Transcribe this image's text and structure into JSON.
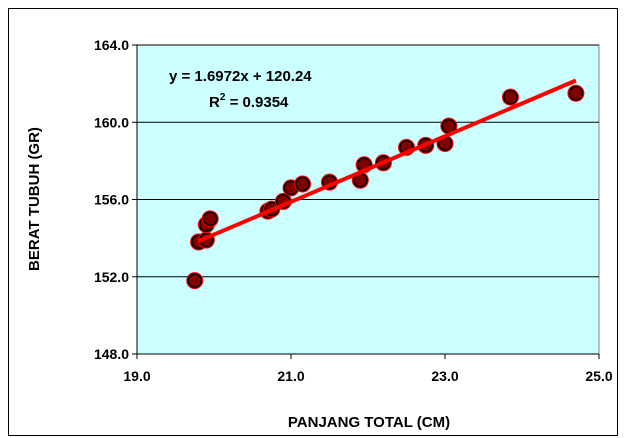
{
  "chart_data": {
    "type": "scatter",
    "xlabel": "PANJANG TOTAL (CM)",
    "ylabel": "BERAT TUBUH (GR)",
    "xlim": [
      19.0,
      25.0
    ],
    "ylim": [
      148.0,
      164.0
    ],
    "x_ticks": [
      "19.0",
      "21.0",
      "23.0",
      "25.0"
    ],
    "y_ticks": [
      "148.0",
      "152.0",
      "156.0",
      "160.0",
      "164.0"
    ],
    "grid": "horizontal",
    "plot_background": "#ccffff",
    "marker_fill": "#800000",
    "marker_edge": "#ff0000",
    "trendline_color": "#ff0000",
    "trendline": {
      "slope": 1.6972,
      "intercept": 120.24,
      "x_range": [
        19.8,
        24.7
      ]
    },
    "equation_line1": "y = 1.6972x + 120.24",
    "equation_r2_prefix": "R",
    "equation_r2_sup": "2",
    "equation_r2_suffix": " = 0.9354",
    "points": [
      {
        "x": 19.75,
        "y": 151.8
      },
      {
        "x": 19.8,
        "y": 153.8
      },
      {
        "x": 19.9,
        "y": 153.9
      },
      {
        "x": 19.9,
        "y": 154.7
      },
      {
        "x": 19.95,
        "y": 155.0
      },
      {
        "x": 20.7,
        "y": 155.4
      },
      {
        "x": 20.75,
        "y": 155.5
      },
      {
        "x": 20.9,
        "y": 155.9
      },
      {
        "x": 21.0,
        "y": 156.6
      },
      {
        "x": 21.15,
        "y": 156.8
      },
      {
        "x": 21.5,
        "y": 156.9
      },
      {
        "x": 21.9,
        "y": 157.0
      },
      {
        "x": 21.95,
        "y": 157.8
      },
      {
        "x": 22.2,
        "y": 157.9
      },
      {
        "x": 22.5,
        "y": 158.7
      },
      {
        "x": 22.75,
        "y": 158.8
      },
      {
        "x": 23.0,
        "y": 158.9
      },
      {
        "x": 23.05,
        "y": 159.8
      },
      {
        "x": 23.85,
        "y": 161.3
      },
      {
        "x": 24.7,
        "y": 161.5
      }
    ]
  }
}
